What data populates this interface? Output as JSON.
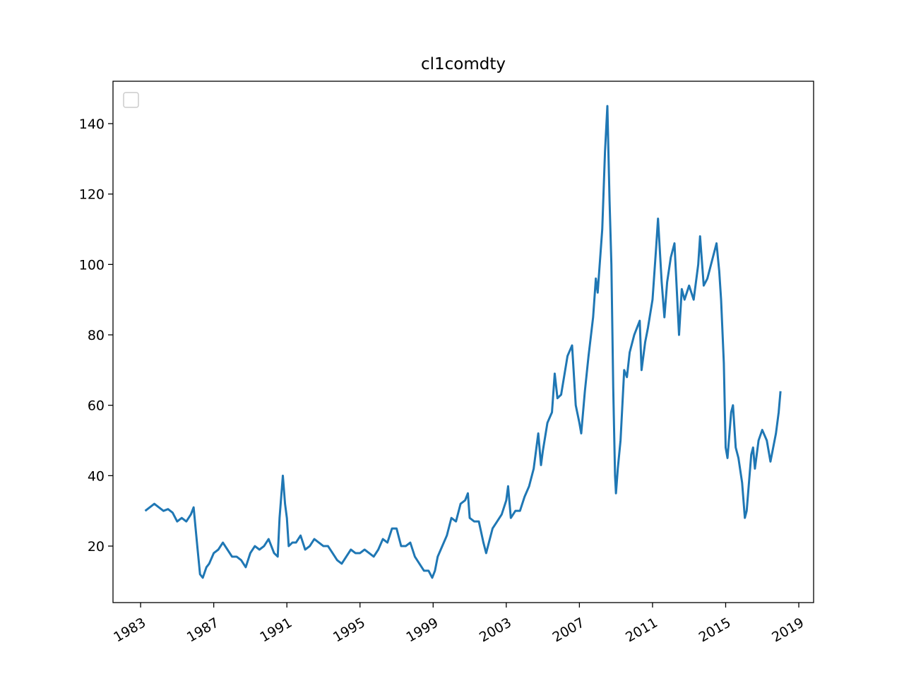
{
  "chart_data": {
    "type": "line",
    "title": "cl1comdty",
    "x": [
      1983.25,
      1983.5,
      1983.75,
      1984,
      1984.25,
      1984.5,
      1984.75,
      1985,
      1985.25,
      1985.5,
      1985.75,
      1985.9,
      1986.1,
      1986.25,
      1986.4,
      1986.6,
      1986.75,
      1987,
      1987.25,
      1987.5,
      1987.75,
      1988,
      1988.25,
      1988.5,
      1988.75,
      1989,
      1989.25,
      1989.5,
      1989.75,
      1990,
      1990.3,
      1990.5,
      1990.6,
      1990.78,
      1990.9,
      1991,
      1991.1,
      1991.3,
      1991.5,
      1991.75,
      1992,
      1992.25,
      1992.5,
      1992.75,
      1993,
      1993.25,
      1993.5,
      1993.75,
      1994,
      1994.25,
      1994.5,
      1994.75,
      1995,
      1995.25,
      1995.5,
      1995.75,
      1996,
      1996.25,
      1996.5,
      1996.75,
      1997,
      1997.25,
      1997.5,
      1997.75,
      1998,
      1998.25,
      1998.5,
      1998.75,
      1998.95,
      1999.1,
      1999.25,
      1999.5,
      1999.75,
      2000,
      2000.25,
      2000.5,
      2000.75,
      2000.9,
      2001,
      2001.25,
      2001.5,
      2001.75,
      2001.9,
      2002,
      2002.25,
      2002.5,
      2002.75,
      2003,
      2003.1,
      2003.25,
      2003.5,
      2003.75,
      2004,
      2004.25,
      2004.5,
      2004.75,
      2004.9,
      2005,
      2005.25,
      2005.5,
      2005.65,
      2005.8,
      2006,
      2006.35,
      2006.6,
      2006.8,
      2007,
      2007.1,
      2007.3,
      2007.5,
      2007.75,
      2007.9,
      2008,
      2008.25,
      2008.4,
      2008.53,
      2008.65,
      2008.75,
      2008.85,
      2008.95,
      2009,
      2009.1,
      2009.25,
      2009.45,
      2009.6,
      2009.75,
      2010,
      2010.3,
      2010.4,
      2010.6,
      2010.75,
      2011,
      2011.2,
      2011.3,
      2011.5,
      2011.65,
      2011.8,
      2012,
      2012.2,
      2012.45,
      2012.6,
      2012.75,
      2013,
      2013.25,
      2013.5,
      2013.6,
      2013.8,
      2014,
      2014.3,
      2014.5,
      2014.65,
      2014.75,
      2014.9,
      2015,
      2015.1,
      2015.3,
      2015.4,
      2015.55,
      2015.7,
      2015.9,
      2016.05,
      2016.15,
      2016.4,
      2016.5,
      2016.6,
      2016.8,
      2017,
      2017.25,
      2017.45,
      2017.6,
      2017.75,
      2017.9,
      2018.0
    ],
    "series": [
      {
        "color": "#1f77b4",
        "values": [
          30,
          31,
          32,
          31,
          30,
          30.5,
          29.5,
          27,
          28,
          27,
          29,
          31,
          20,
          12,
          11,
          14,
          15,
          18,
          19,
          21,
          19,
          17,
          17,
          16,
          14,
          18,
          20,
          19,
          20,
          22,
          18,
          17,
          28,
          40,
          32,
          28,
          20,
          21,
          21,
          23,
          19,
          20,
          22,
          21,
          20,
          20,
          18,
          16,
          15,
          17,
          19,
          18,
          18,
          19,
          18,
          17,
          19,
          22,
          21,
          25,
          25,
          20,
          20,
          21,
          17,
          15,
          13,
          13,
          11,
          13,
          17,
          20,
          23,
          28,
          27,
          32,
          33,
          35,
          28,
          27,
          27,
          21,
          18,
          20,
          25,
          27,
          29,
          33,
          37,
          28,
          30,
          30,
          34,
          37,
          42,
          52,
          43,
          47,
          55,
          58,
          69,
          62,
          63,
          74,
          77,
          60,
          55,
          52,
          64,
          74,
          85,
          96,
          92,
          110,
          132,
          145,
          118,
          100,
          65,
          40,
          35,
          42,
          50,
          70,
          68,
          75,
          80,
          84,
          70,
          78,
          82,
          90,
          105,
          113,
          95,
          85,
          95,
          102,
          106,
          80,
          93,
          90,
          94,
          90,
          100,
          108,
          94,
          96,
          102,
          106,
          98,
          90,
          72,
          48,
          45,
          58,
          60,
          48,
          45,
          38,
          28,
          30,
          46,
          48,
          42,
          50,
          53,
          50,
          44,
          48,
          52,
          58,
          64
        ]
      }
    ],
    "xlim": [
      1981.49,
      2019.81
    ],
    "xticks": [
      1983,
      1987,
      1991,
      1995,
      1999,
      2003,
      2007,
      2011,
      2015,
      2019
    ],
    "ylim": [
      3.95,
      152.04
    ],
    "yticks": [
      20,
      40,
      60,
      80,
      100,
      120,
      140
    ],
    "grid": false
  }
}
